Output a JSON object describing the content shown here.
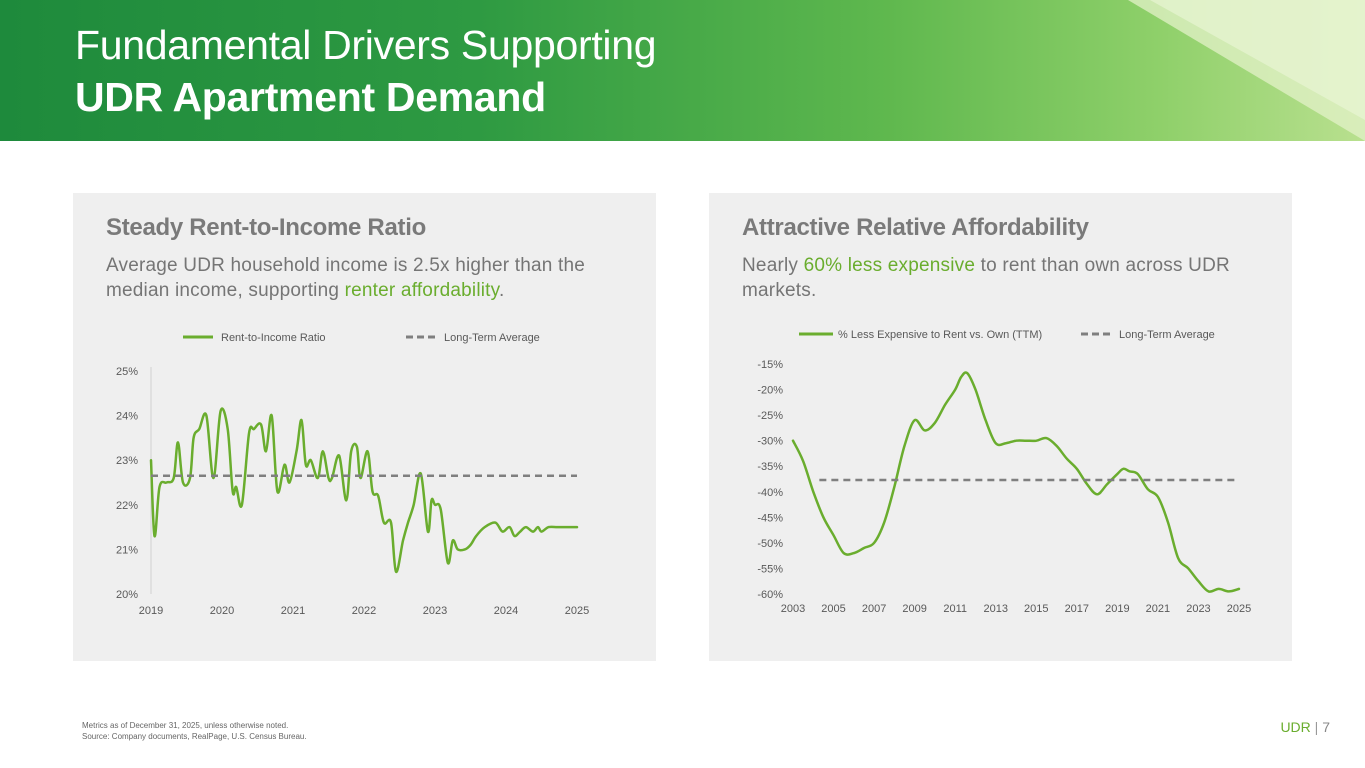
{
  "header": {
    "title_line1": "Fundamental Drivers Supporting",
    "title_line2": "UDR Apartment Demand"
  },
  "colors": {
    "accent": "#6aad2e",
    "dash": "#7f7f7f",
    "panel_bg": "#efefef",
    "banner_dark": "#1e8a3c"
  },
  "left_panel": {
    "title": "Steady Rent-to-Income Ratio",
    "subtitle_pre": "Average UDR household income is 2.5x higher than the median income, supporting ",
    "subtitle_highlight": "renter affordability",
    "subtitle_post": "."
  },
  "right_panel": {
    "title": "Attractive Relative Affordability",
    "subtitle_pre": "Nearly ",
    "subtitle_highlight": "60% less expensive",
    "subtitle_post": " to rent than own across UDR markets."
  },
  "chart_data": [
    {
      "type": "line",
      "legend_placement": "top",
      "grid": false,
      "xlim": [
        2019,
        2025
      ],
      "ylim": [
        20,
        25
      ],
      "x_ticks": [
        "2019",
        "2020",
        "2021",
        "2022",
        "2023",
        "2024",
        "2025"
      ],
      "y_ticks": [
        "20%",
        "21%",
        "22%",
        "23%",
        "24%",
        "25%"
      ],
      "series": [
        {
          "name": "Rent-to-Income Ratio",
          "style": "solid",
          "x": [
            2019.0,
            2019.05,
            2019.12,
            2019.22,
            2019.32,
            2019.38,
            2019.45,
            2019.55,
            2019.6,
            2019.68,
            2019.78,
            2019.88,
            2019.98,
            2020.08,
            2020.15,
            2020.2,
            2020.28,
            2020.38,
            2020.45,
            2020.55,
            2020.62,
            2020.7,
            2020.78,
            2020.88,
            2020.95,
            2021.05,
            2021.12,
            2021.18,
            2021.25,
            2021.35,
            2021.42,
            2021.5,
            2021.55,
            2021.65,
            2021.75,
            2021.82,
            2021.9,
            2021.95,
            2022.05,
            2022.12,
            2022.2,
            2022.28,
            2022.38,
            2022.45,
            2022.55,
            2022.62,
            2022.7,
            2022.8,
            2022.9,
            2022.95,
            2023.0,
            2023.08,
            2023.18,
            2023.25,
            2023.32,
            2023.42,
            2023.5,
            2023.58,
            2023.7,
            2023.85,
            2023.95,
            2024.05,
            2024.12,
            2024.2,
            2024.28,
            2024.38,
            2024.45,
            2024.5,
            2024.6,
            2024.72,
            2024.85,
            2025.0
          ],
          "values": [
            23.0,
            21.3,
            22.4,
            22.5,
            22.6,
            23.4,
            22.5,
            22.6,
            23.5,
            23.7,
            24.0,
            22.6,
            24.1,
            23.7,
            22.3,
            22.4,
            22.0,
            23.6,
            23.7,
            23.8,
            23.2,
            24.0,
            22.3,
            22.9,
            22.5,
            23.2,
            23.9,
            22.9,
            23.0,
            22.6,
            23.2,
            22.6,
            22.6,
            23.1,
            22.1,
            23.2,
            23.3,
            22.6,
            23.2,
            22.3,
            22.2,
            21.6,
            21.6,
            20.5,
            21.2,
            21.6,
            22.0,
            22.7,
            21.4,
            22.1,
            22.0,
            21.9,
            20.7,
            21.2,
            21.0,
            21.0,
            21.1,
            21.3,
            21.5,
            21.6,
            21.4,
            21.5,
            21.3,
            21.4,
            21.5,
            21.4,
            21.5,
            21.4,
            21.5,
            21.5,
            21.5,
            21.5
          ]
        },
        {
          "name": "Long-Term Average",
          "style": "dashed",
          "x": [
            2019.0,
            2025.0
          ],
          "values": [
            22.65,
            22.65
          ]
        }
      ]
    },
    {
      "type": "line",
      "legend_placement": "top",
      "grid": false,
      "xlim": [
        2003,
        2025
      ],
      "ylim": [
        -60,
        -15
      ],
      "x_ticks": [
        "2003",
        "2005",
        "2007",
        "2009",
        "2011",
        "2013",
        "2015",
        "2017",
        "2019",
        "2021",
        "2023",
        "2025"
      ],
      "y_ticks": [
        "-60%",
        "-55%",
        "-50%",
        "-45%",
        "-40%",
        "-35%",
        "-30%",
        "-25%",
        "-20%",
        "-15%"
      ],
      "series": [
        {
          "name": "% Less Expensive to Rent vs. Own (TTM)",
          "style": "solid",
          "x": [
            2003.0,
            2003.5,
            2004.0,
            2004.5,
            2005.0,
            2005.5,
            2006.0,
            2006.5,
            2007.0,
            2007.5,
            2008.0,
            2008.5,
            2009.0,
            2009.5,
            2010.0,
            2010.5,
            2011.0,
            2011.3,
            2011.6,
            2012.0,
            2012.5,
            2013.0,
            2013.5,
            2014.0,
            2014.5,
            2015.0,
            2015.5,
            2016.0,
            2016.5,
            2017.0,
            2017.5,
            2018.0,
            2018.5,
            2019.0,
            2019.3,
            2019.6,
            2020.0,
            2020.5,
            2021.0,
            2021.5,
            2022.0,
            2022.5,
            2023.0,
            2023.5,
            2024.0,
            2024.5,
            2025.0
          ],
          "values": [
            -30,
            -34,
            -40,
            -45,
            -48.5,
            -52,
            -52,
            -51,
            -50,
            -46,
            -39,
            -31,
            -26,
            -28,
            -26.5,
            -23,
            -20,
            -17.5,
            -16.8,
            -20,
            -26,
            -30.5,
            -30.5,
            -30,
            -30,
            -30,
            -29.5,
            -31,
            -33.5,
            -35.5,
            -38.5,
            -40.5,
            -38.5,
            -36.5,
            -35.5,
            -36,
            -36.5,
            -39.5,
            -41,
            -46,
            -53,
            -55,
            -57.5,
            -59.5,
            -59,
            -59.5,
            -59
          ]
        },
        {
          "name": "Long-Term Average",
          "style": "dashed",
          "x": [
            2004.3,
            2025.0
          ],
          "values": [
            -37.7,
            -37.7
          ]
        }
      ]
    }
  ],
  "footer": {
    "note_line1": "Metrics as of December 31, 2025, unless otherwise noted.",
    "note_line2": "Source: Company documents, RealPage, U.S. Census Bureau.",
    "brand": "UDR",
    "separator": "|",
    "page": "7"
  }
}
